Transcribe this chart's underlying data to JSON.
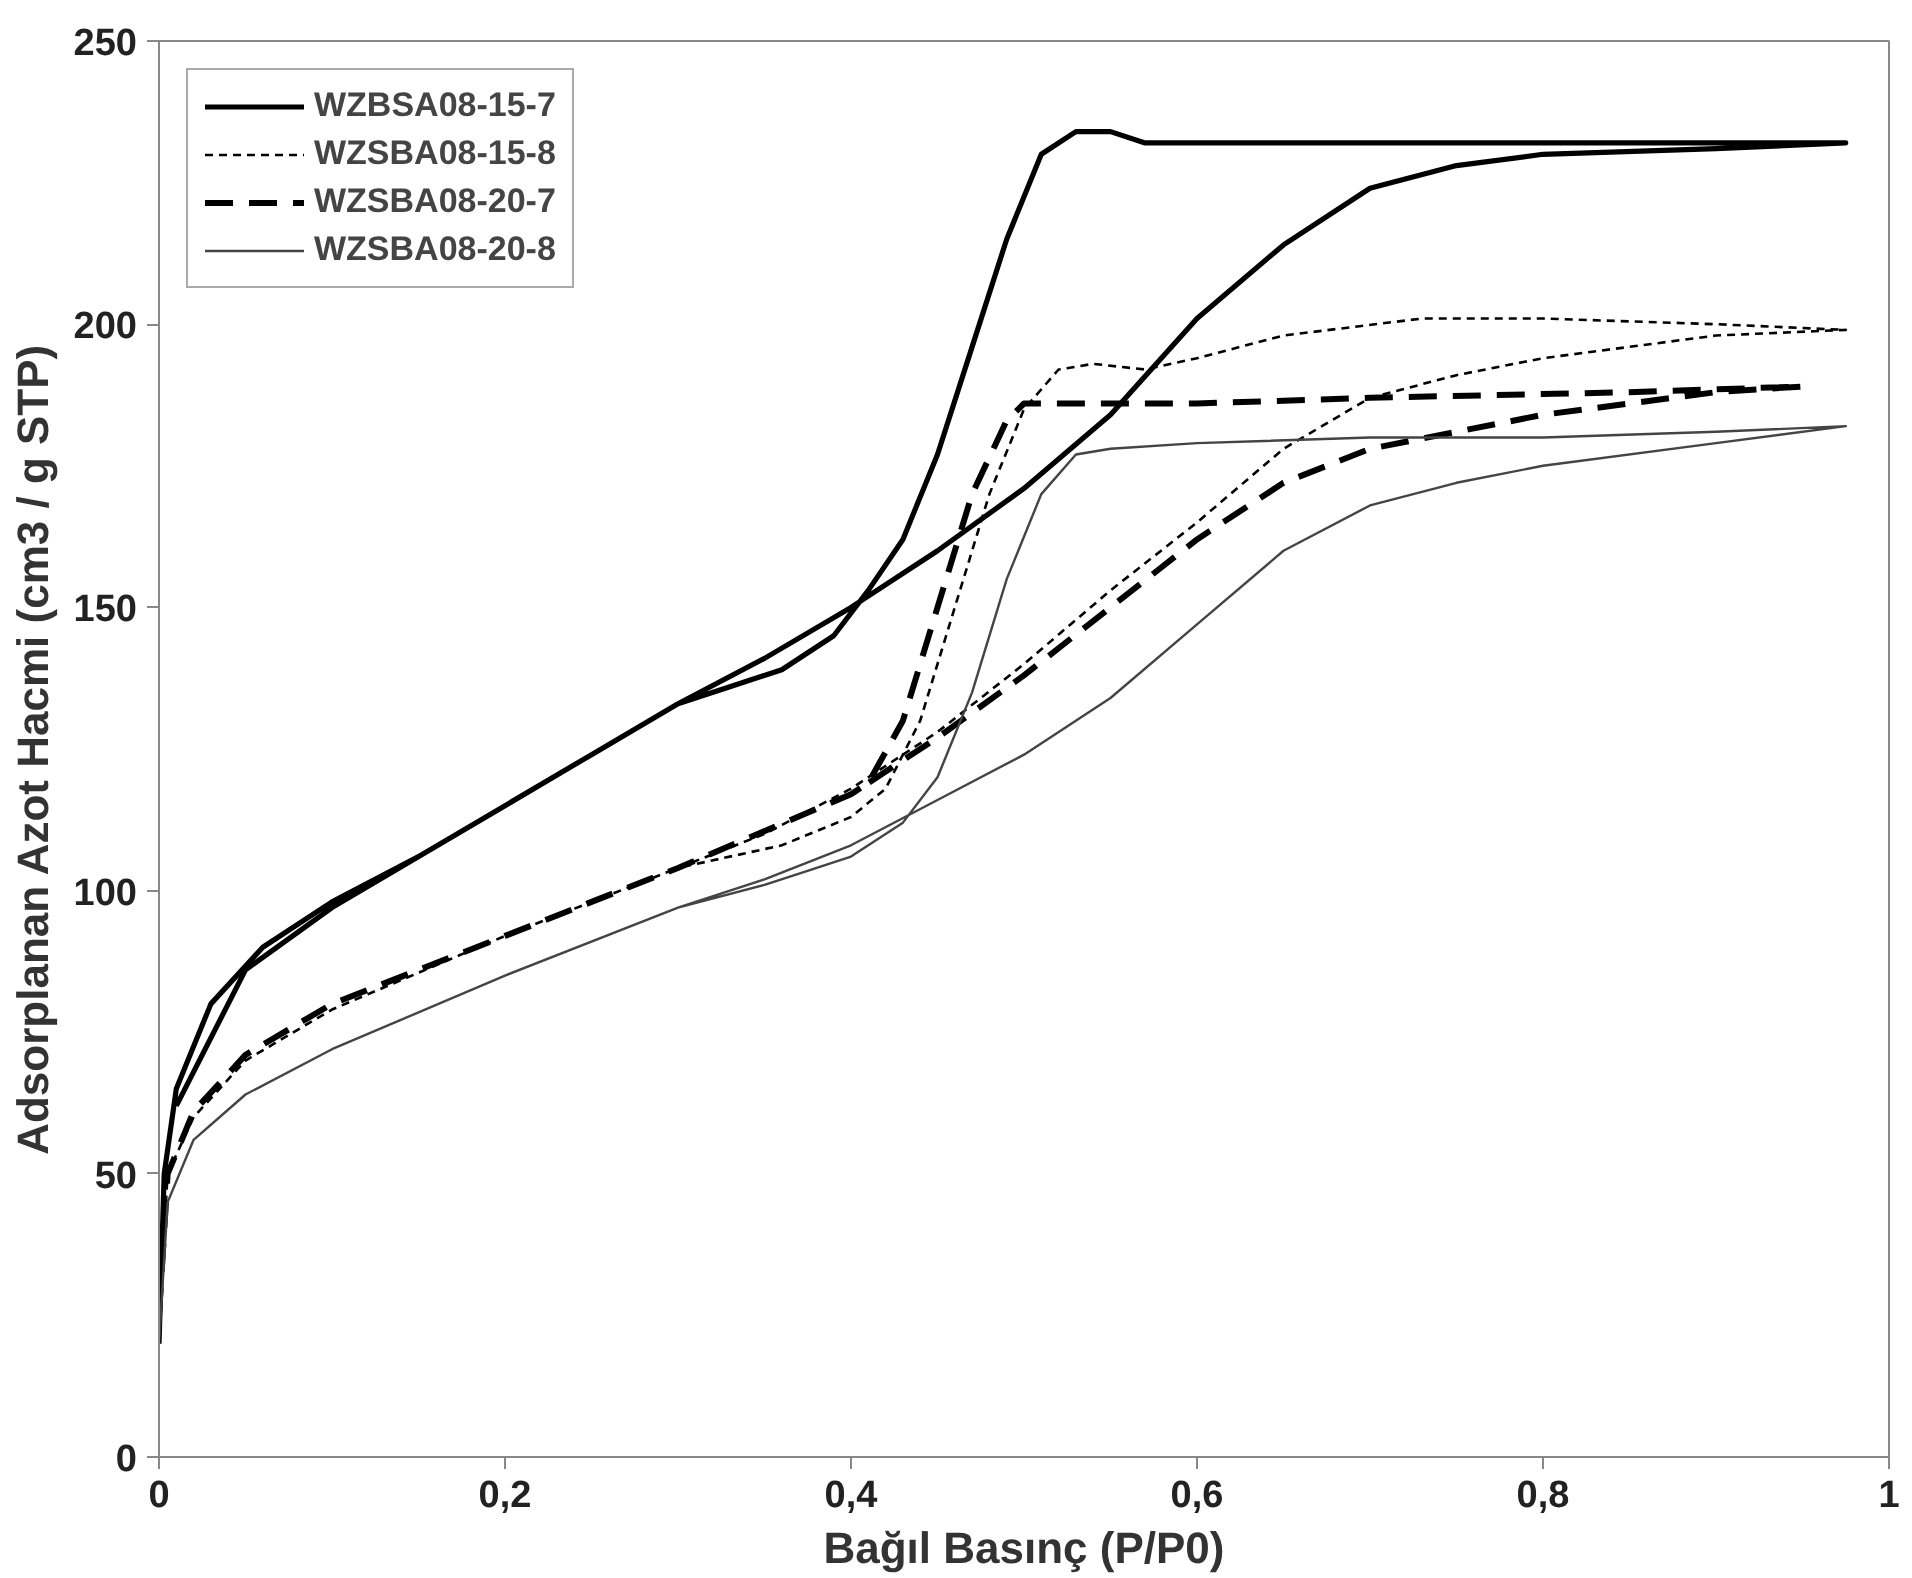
{
  "chart_data": {
    "type": "line",
    "xlabel": "Bağıl Basınç (P/P0)",
    "ylabel": "Adsorplanan Azot Hacmi (cm3 / g STP)",
    "xlim": [
      0,
      1
    ],
    "ylim": [
      0,
      250
    ],
    "xticks": [
      0,
      {
        "value": 0.2,
        "label": "0,2"
      },
      {
        "value": 0.4,
        "label": "0,4"
      },
      {
        "value": 0.6,
        "label": "0,6"
      },
      {
        "value": 0.8,
        "label": "0,8"
      },
      1
    ],
    "yticks": [
      0,
      50,
      100,
      150,
      200,
      250
    ],
    "grid": false,
    "legend": "top left",
    "marker": "none",
    "series": [
      {
        "name": "WZBSA08-15-7",
        "color": "#000000",
        "line_style": "solid",
        "x": [
          0,
          0.003,
          0.01,
          0.03,
          0.06,
          0.1,
          0.15,
          0.2,
          0.25,
          0.3,
          0.35,
          0.4,
          0.45,
          0.5,
          0.55,
          0.6,
          0.65,
          0.7,
          0.75,
          0.8,
          0.9,
          0.975,
          0.9,
          0.8,
          0.7,
          0.6,
          0.57,
          0.55,
          0.53,
          0.51,
          0.49,
          0.47,
          0.45,
          0.43,
          0.41,
          0.39,
          0.36,
          0.33,
          0.3,
          0.25,
          0.2,
          0.1,
          0.05,
          0.01
        ],
        "values": [
          20,
          50,
          65,
          80,
          90,
          98,
          106,
          115,
          124,
          133,
          141,
          150,
          160,
          171,
          184,
          201,
          214,
          224,
          228,
          230,
          231,
          232,
          232,
          232,
          232,
          232,
          232,
          234,
          234,
          230,
          215,
          196,
          177,
          162,
          153,
          145,
          139,
          136,
          133,
          124,
          115,
          97,
          86,
          62
        ]
      },
      {
        "name": "WZSBA08-15-8",
        "color": "#000000",
        "line_style": "dotted",
        "x": [
          0,
          0.005,
          0.02,
          0.05,
          0.1,
          0.2,
          0.3,
          0.35,
          0.4,
          0.45,
          0.5,
          0.55,
          0.6,
          0.65,
          0.7,
          0.75,
          0.8,
          0.9,
          0.975,
          0.9,
          0.8,
          0.73,
          0.65,
          0.6,
          0.57,
          0.54,
          0.52,
          0.5,
          0.48,
          0.46,
          0.44,
          0.42,
          0.4,
          0.36,
          0.3
        ],
        "values": [
          25,
          50,
          60,
          70,
          79,
          92,
          104,
          110,
          118,
          128,
          140,
          153,
          165,
          178,
          187,
          191,
          194,
          198,
          199,
          200,
          201,
          201,
          198,
          194,
          192,
          193,
          192,
          185,
          170,
          150,
          130,
          118,
          113,
          108,
          104
        ]
      },
      {
        "name": "WZSBA08-20-7",
        "color": "#000000",
        "line_style": "dashed",
        "x": [
          0,
          0.005,
          0.02,
          0.05,
          0.1,
          0.2,
          0.3,
          0.4,
          0.45,
          0.5,
          0.55,
          0.6,
          0.65,
          0.7,
          0.75,
          0.8,
          0.9,
          0.95,
          0.85,
          0.7,
          0.6,
          0.5,
          0.49,
          0.47,
          0.45,
          0.43,
          0.41,
          0.4
        ],
        "values": [
          25,
          50,
          61,
          71,
          80,
          92,
          104,
          117,
          127,
          138,
          150,
          162,
          172,
          178,
          181,
          184,
          188,
          189,
          188,
          187,
          186,
          186,
          183,
          170,
          150,
          130,
          119,
          117
        ]
      },
      {
        "name": "WZSBA08-20-8",
        "color": "#444444",
        "line_style": "solid",
        "x": [
          0,
          0.005,
          0.02,
          0.05,
          0.1,
          0.2,
          0.3,
          0.35,
          0.4,
          0.45,
          0.5,
          0.55,
          0.6,
          0.65,
          0.7,
          0.75,
          0.8,
          0.9,
          0.975,
          0.9,
          0.8,
          0.7,
          0.6,
          0.55,
          0.53,
          0.51,
          0.49,
          0.47,
          0.45,
          0.43,
          0.4,
          0.37,
          0.35,
          0.3
        ],
        "values": [
          20,
          45,
          56,
          64,
          72,
          85,
          97,
          102,
          108,
          116,
          124,
          134,
          147,
          160,
          168,
          172,
          175,
          179,
          182,
          181,
          180,
          180,
          179,
          178,
          177,
          170,
          155,
          135,
          120,
          112,
          106,
          103,
          101,
          97
        ]
      }
    ]
  }
}
